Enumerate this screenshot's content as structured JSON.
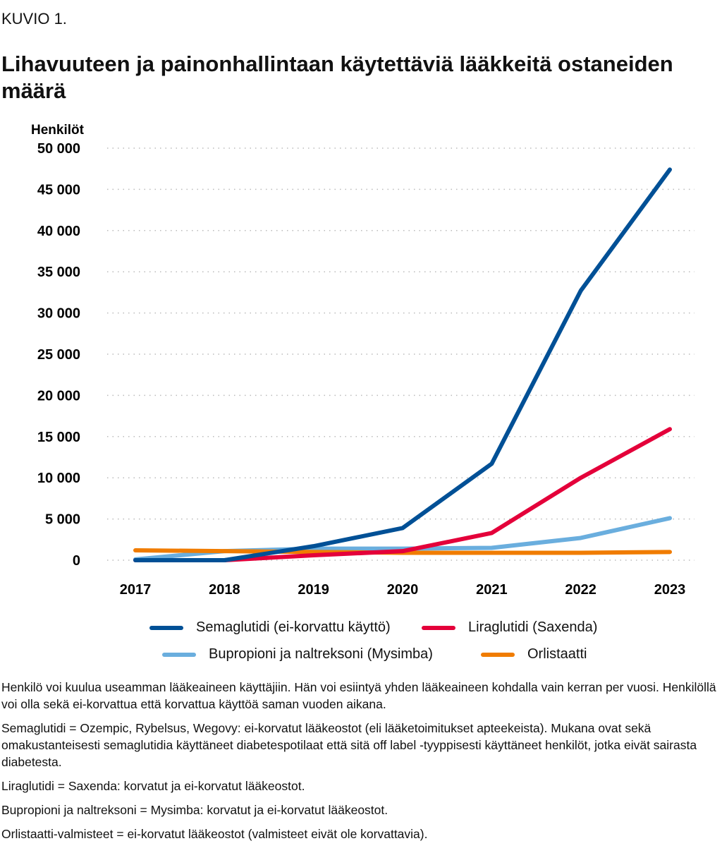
{
  "label": "KUVIO 1.",
  "chart_data": {
    "type": "line",
    "title": "Lihavuuteen ja painonhallintaan käytettäviä lääkkeitä ostaneiden määrä",
    "ylabel": "Henkilöt",
    "xlabel": "",
    "ylim": [
      0,
      50000
    ],
    "yticks": [
      "0",
      "5 000",
      "10 000",
      "15 000",
      "20 000",
      "25 000",
      "30 000",
      "35 000",
      "40 000",
      "45 000",
      "50 000"
    ],
    "x": [
      "2017",
      "2018",
      "2019",
      "2020",
      "2021",
      "2022",
      "2023"
    ],
    "grid": true,
    "legend": "bottom",
    "series": [
      {
        "name": "Bupropioni ja naltreksoni (Mysimba)",
        "color": "#6aaede",
        "values": [
          100,
          1100,
          1400,
          1400,
          1500,
          2700,
          5100
        ]
      },
      {
        "name": "Orlistaatti",
        "color": "#f07c00",
        "values": [
          1200,
          1100,
          1000,
          900,
          900,
          900,
          1000
        ]
      },
      {
        "name": "Liraglutidi (Saxenda)",
        "color": "#e4003a",
        "values": [
          0,
          0,
          600,
          1100,
          3300,
          10000,
          15900
        ]
      },
      {
        "name": "Semaglutidi (ei-korvattu käyttö)",
        "color": "#005096",
        "values": [
          0,
          0,
          1700,
          3900,
          11700,
          32700,
          47400
        ]
      }
    ]
  },
  "notes": [
    "Henkilö voi kuulua useamman lääkeaineen käyttäjiin. Hän voi esiintyä yhden lääkeaineen kohdalla vain kerran per vuosi. Henkilöllä voi olla sekä ei-korvattua että korvattua käyttöä saman vuoden aikana.",
    "Semaglutidi = Ozempic, Rybelsus, Wegovy: ei-korvatut lääkeostot (eli lääketoimitukset apteekeista). Mukana ovat sekä omakustanteisesti semaglutidia käyttäneet diabetespotilaat että sitä off label -tyyppisesti käyttäneet henkilöt, jotka eivät sairasta diabetesta.",
    "Liraglutidi = Saxenda: korvatut ja ei-korvatut lääkeostot.",
    "Bupropioni ja naltreksoni = Mysimba: korvatut ja ei-korvatut lääkeostot.",
    "Orlistaatti-valmisteet = ei-korvatut lääkeostot (valmisteet eivät ole korvattavia)."
  ]
}
